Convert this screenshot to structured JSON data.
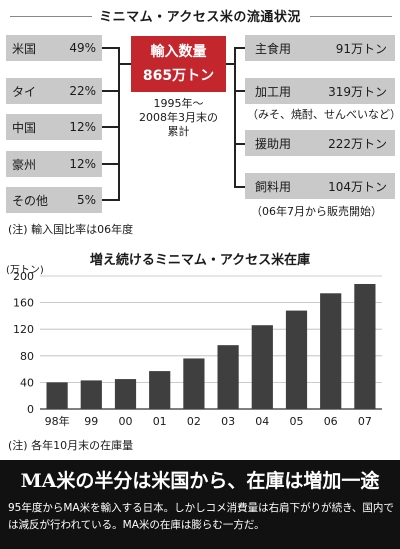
{
  "flow": {
    "title": "ミニマム・アクセス米の流通状況",
    "sources": [
      {
        "name": "米国",
        "share": "49%"
      },
      {
        "name": "タイ",
        "share": "22%"
      },
      {
        "name": "中国",
        "share": "12%"
      },
      {
        "name": "豪州",
        "share": "12%"
      },
      {
        "name": "その他",
        "share": "5%"
      }
    ],
    "center_line1": "輸入数量",
    "center_line2": "865万トン",
    "center_note_line1": "1995年〜",
    "center_note_line2": "2008年3月末の",
    "center_note_line3": "累計",
    "destinations": [
      {
        "name": "主食用",
        "amount": "91万トン",
        "note": ""
      },
      {
        "name": "加工用",
        "amount": "319万トン",
        "note": "（みそ、焼酎、せんべいなど）"
      },
      {
        "name": "援助用",
        "amount": "222万トン",
        "note": ""
      },
      {
        "name": "飼料用",
        "amount": "104万トン",
        "note": "（06年7月から販売開始）"
      }
    ],
    "source_note": "(注) 輸入国比率は06年度"
  },
  "chart_data": {
    "type": "bar",
    "title": "増え続けるミニマム・アクセス米在庫",
    "ylabel": "(万トン)",
    "xlabel": "",
    "categories": [
      "98年",
      "99",
      "00",
      "01",
      "02",
      "03",
      "04",
      "05",
      "06",
      "07"
    ],
    "values": [
      40,
      43,
      45,
      57,
      76,
      96,
      126,
      148,
      174,
      188
    ],
    "ylim": [
      0,
      200
    ],
    "yticks": [
      0,
      40,
      80,
      120,
      160,
      200
    ],
    "grid": true,
    "bar_color": "#3f3f3f",
    "note": "(注) 各年10月末の在庫量"
  },
  "article": {
    "headline": "MA米の半分は米国から、在庫は増加一途",
    "body": "95年度からMA米を輸入する日本。しかしコメ消費量は右肩下がりが続き、国内では減反が行われている。MA米の在庫は膨らむ一方だ。"
  },
  "colors": {
    "accent": "#c4262e",
    "box_gray": "#c9c9c9",
    "band": "#111111"
  }
}
